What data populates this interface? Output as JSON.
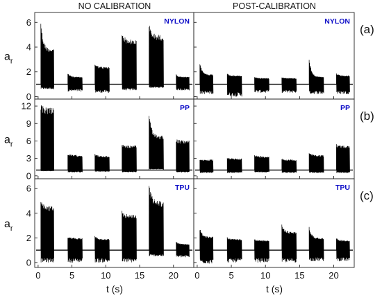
{
  "chart_data": {
    "type": "line",
    "columns": [
      "NO CALIBRATION",
      "POST-CALIBRATION"
    ],
    "xlabel": "t (s)",
    "xlim": [
      -0.5,
      23
    ],
    "xticks": [
      0,
      5,
      10,
      15,
      20
    ],
    "ylabel_main": "a",
    "ylabel_sub": "r",
    "material_color": "#1010c8",
    "trace_color": "#000000",
    "baseline": 1.0,
    "panel_labels": [
      "(a)",
      "(b)",
      "(c)"
    ],
    "rows": [
      {
        "material": "NYLON",
        "ylim": [
          -0.2,
          6.8
        ],
        "yticks": [
          0,
          2,
          4,
          6
        ],
        "bursts_no_calibration": [
          {
            "t_start": 0.4,
            "t_end": 2.3,
            "peak": 6.3,
            "upper": 3.9,
            "lower": 0.6
          },
          {
            "t_start": 4.4,
            "t_end": 6.5,
            "peak": 1.9,
            "upper": 1.6,
            "lower": 0.4
          },
          {
            "t_start": 8.4,
            "t_end": 10.5,
            "peak": 2.7,
            "upper": 2.4,
            "lower": 0.3
          },
          {
            "t_start": 12.4,
            "t_end": 14.5,
            "peak": 5.3,
            "upper": 4.6,
            "lower": 0.5
          },
          {
            "t_start": 16.4,
            "t_end": 18.5,
            "peak": 5.9,
            "upper": 5.0,
            "lower": 0.7
          },
          {
            "t_start": 20.4,
            "t_end": 22.3,
            "peak": 1.8,
            "upper": 1.6,
            "lower": 0.5
          }
        ],
        "bursts_post_calibration": [
          {
            "t_start": 0.4,
            "t_end": 2.3,
            "peak": 2.8,
            "upper": 1.8,
            "lower": 0.2
          },
          {
            "t_start": 4.4,
            "t_end": 6.5,
            "peak": 1.9,
            "upper": 1.7,
            "lower": 0.0
          },
          {
            "t_start": 8.4,
            "t_end": 10.5,
            "peak": 1.6,
            "upper": 1.5,
            "lower": 0.3
          },
          {
            "t_start": 12.4,
            "t_end": 14.5,
            "peak": 1.6,
            "upper": 1.5,
            "lower": 0.3
          },
          {
            "t_start": 16.4,
            "t_end": 18.5,
            "peak": 3.1,
            "upper": 1.6,
            "lower": 0.2
          },
          {
            "t_start": 20.4,
            "t_end": 22.3,
            "peak": 1.9,
            "upper": 1.7,
            "lower": 0.2
          }
        ]
      },
      {
        "material": "PP",
        "ylim": [
          -0.5,
          13.2
        ],
        "yticks": [
          0,
          3,
          6,
          9,
          12
        ],
        "bursts_no_calibration": [
          {
            "t_start": 0.4,
            "t_end": 2.3,
            "peak": 12.3,
            "upper": 11.9,
            "lower": 0.8
          },
          {
            "t_start": 4.4,
            "t_end": 6.5,
            "peak": 3.8,
            "upper": 3.6,
            "lower": 0.6
          },
          {
            "t_start": 8.4,
            "t_end": 10.5,
            "peak": 3.9,
            "upper": 3.4,
            "lower": 0.7
          },
          {
            "t_start": 12.4,
            "t_end": 14.5,
            "peak": 5.6,
            "upper": 5.2,
            "lower": 0.6
          },
          {
            "t_start": 16.4,
            "t_end": 18.5,
            "peak": 11.2,
            "upper": 7.0,
            "lower": 1.2
          },
          {
            "t_start": 20.4,
            "t_end": 22.3,
            "peak": 6.4,
            "upper": 6.1,
            "lower": 0.6
          }
        ],
        "bursts_post_calibration": [
          {
            "t_start": 0.4,
            "t_end": 2.3,
            "peak": 2.9,
            "upper": 2.8,
            "lower": 0.5
          },
          {
            "t_start": 4.4,
            "t_end": 6.5,
            "peak": 3.1,
            "upper": 3.0,
            "lower": 0.5
          },
          {
            "t_start": 8.4,
            "t_end": 10.5,
            "peak": 3.6,
            "upper": 3.4,
            "lower": 0.6
          },
          {
            "t_start": 12.4,
            "t_end": 14.5,
            "peak": 3.0,
            "upper": 2.8,
            "lower": 0.5
          },
          {
            "t_start": 16.4,
            "t_end": 18.5,
            "peak": 4.1,
            "upper": 3.6,
            "lower": 0.5
          },
          {
            "t_start": 20.4,
            "t_end": 22.3,
            "peak": 5.5,
            "upper": 5.2,
            "lower": 0.5
          }
        ]
      },
      {
        "material": "TPU",
        "ylim": [
          -0.4,
          6.8
        ],
        "yticks": [
          0,
          2,
          4,
          6
        ],
        "bursts_no_calibration": [
          {
            "t_start": 0.4,
            "t_end": 2.3,
            "peak": 5.3,
            "upper": 4.6,
            "lower": 0.0
          },
          {
            "t_start": 4.4,
            "t_end": 6.5,
            "peak": 2.1,
            "upper": 2.0,
            "lower": 0.0
          },
          {
            "t_start": 8.4,
            "t_end": 10.5,
            "peak": 2.2,
            "upper": 1.9,
            "lower": 0.0
          },
          {
            "t_start": 12.4,
            "t_end": 14.5,
            "peak": 4.2,
            "upper": 3.9,
            "lower": 0.0
          },
          {
            "t_start": 16.4,
            "t_end": 18.5,
            "peak": 6.5,
            "upper": 5.0,
            "lower": 0.5
          },
          {
            "t_start": 20.4,
            "t_end": 22.3,
            "peak": 1.7,
            "upper": 1.5,
            "lower": 0.4
          }
        ],
        "bursts_post_calibration": [
          {
            "t_start": 0.4,
            "t_end": 2.3,
            "peak": 2.8,
            "upper": 2.1,
            "lower": -0.1
          },
          {
            "t_start": 4.4,
            "t_end": 6.5,
            "peak": 2.1,
            "upper": 1.9,
            "lower": 0.0
          },
          {
            "t_start": 8.4,
            "t_end": 10.5,
            "peak": 1.9,
            "upper": 1.8,
            "lower": 0.0
          },
          {
            "t_start": 12.4,
            "t_end": 14.5,
            "peak": 3.1,
            "upper": 2.5,
            "lower": 0.0
          },
          {
            "t_start": 16.4,
            "t_end": 18.5,
            "peak": 2.9,
            "upper": 2.0,
            "lower": 0.1
          },
          {
            "t_start": 20.4,
            "t_end": 22.3,
            "peak": 2.0,
            "upper": 1.8,
            "lower": 0.1
          }
        ]
      }
    ]
  }
}
